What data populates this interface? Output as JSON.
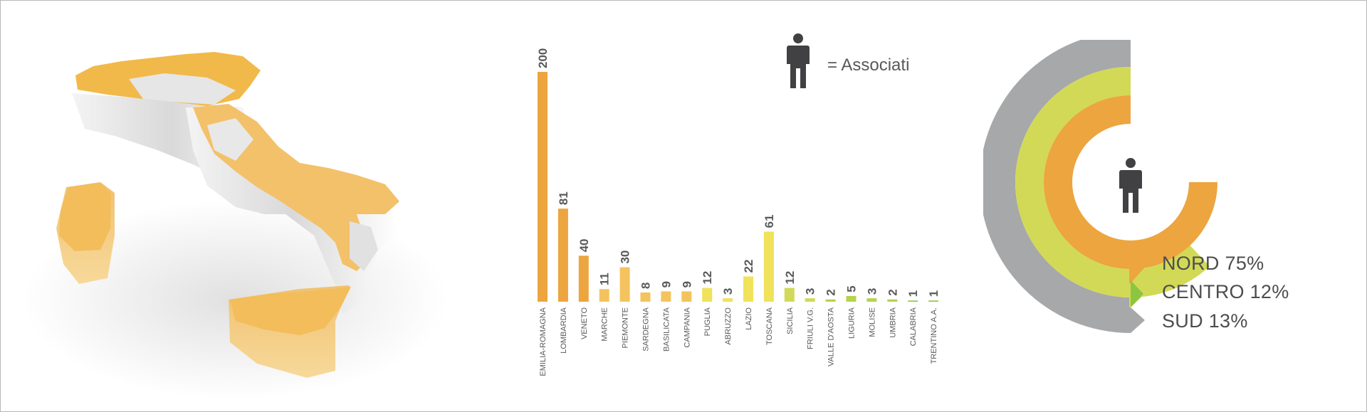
{
  "legend": {
    "label": "= Associati",
    "icon": "person-icon"
  },
  "colors": {
    "orange": "#eca53f",
    "light_orange": "#f4c35e",
    "yellow": "#f0e25a",
    "lime": "#d2d957",
    "light_green": "#b4d34e",
    "green": "#8cc53f",
    "grey": "#a6a8aa",
    "dark": "#414042"
  },
  "chart_data": [
    {
      "type": "bar",
      "categories": [
        "EMILIA-ROMAGNA",
        "LOMBARDIA",
        "VENETO",
        "MARCHE",
        "PIEMONTE",
        "SARDEGNA",
        "BASILICATA",
        "CAMPANIA",
        "PUGLIA",
        "ABRUZZO",
        "LAZIO",
        "TOSCANA",
        "SICILIA",
        "FRIULI V.G.",
        "VALLE D'AOSTA",
        "LIGURIA",
        "MOLISE",
        "UMBRIA",
        "CALABRIA",
        "TRENTINO A.A."
      ],
      "values": [
        200,
        81,
        40,
        11,
        30,
        8,
        9,
        9,
        12,
        3,
        22,
        61,
        12,
        3,
        2,
        5,
        3,
        2,
        1,
        1
      ],
      "data_labels": [
        "200",
        "81",
        "40",
        "11",
        "30",
        "8",
        "9",
        "9",
        "12",
        "3",
        "22",
        "61",
        "12",
        "3",
        "2",
        "5",
        "3",
        "2",
        "1",
        "1"
      ],
      "bar_colors": [
        "#eca53f",
        "#eca53f",
        "#eca53f",
        "#f4c35e",
        "#f4c35e",
        "#f4c35e",
        "#f4c35e",
        "#f4c35e",
        "#f0e25a",
        "#f0e25a",
        "#f0e25a",
        "#f0e25a",
        "#d2d957",
        "#d2d957",
        "#b4d34e",
        "#b4d34e",
        "#b4d34e",
        "#b4d34e",
        "#8cc53f",
        "#8cc53f"
      ],
      "ylim": [
        0,
        200
      ]
    },
    {
      "type": "pie",
      "series": [
        {
          "name": "NORD",
          "value": 75,
          "label": "NORD 75%",
          "color": "#eca53f"
        },
        {
          "name": "CENTRO",
          "value": 12,
          "label": "CENTRO 12%",
          "color": "#d2d957"
        },
        {
          "name": "SUD",
          "value": 13,
          "label": "SUD 13%",
          "color": "#a6a8aa"
        }
      ]
    }
  ]
}
